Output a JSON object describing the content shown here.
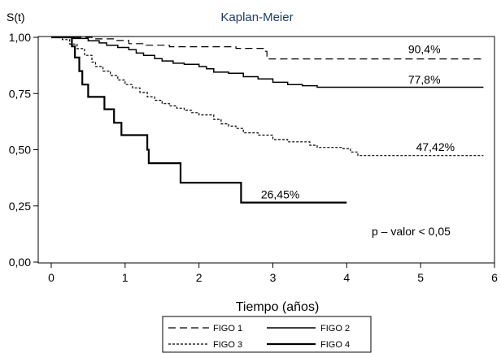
{
  "chart_data": {
    "type": "line",
    "title": "Kaplan-Meier",
    "title_color": "#1f3d6b",
    "ylabel": "S(t)",
    "xlabel": "Tiempo (años)",
    "xlim": [
      0,
      6
    ],
    "ylim": [
      0,
      1
    ],
    "xticks": [
      0,
      1,
      2,
      3,
      4,
      5,
      6
    ],
    "xtick_labels": [
      "0",
      "1",
      "2",
      "3",
      "4",
      "5",
      "6"
    ],
    "yticks": [
      0,
      0.25,
      0.5,
      0.75,
      1
    ],
    "ytick_labels": [
      "0,00",
      "0,25",
      "0,50",
      "0,75",
      "1,00"
    ],
    "grid": false,
    "legend": {
      "position": "bottom",
      "columns": 2
    },
    "annotation": "p – valor <  0,05",
    "series": [
      {
        "name": "FIGO 1",
        "style": "long-dash",
        "label": "90,4%",
        "points": [
          [
            0,
            1
          ],
          [
            0.45,
            1
          ],
          [
            0.55,
            0.993
          ],
          [
            0.85,
            0.986
          ],
          [
            1.05,
            0.972
          ],
          [
            1.25,
            0.965
          ],
          [
            1.6,
            0.958
          ],
          [
            2.5,
            0.951
          ],
          [
            2.9,
            0.938
          ],
          [
            2.92,
            0.904
          ],
          [
            5.85,
            0.904
          ]
        ]
      },
      {
        "name": "FIGO 2",
        "style": "solid",
        "label": "77,8%",
        "points": [
          [
            0,
            1
          ],
          [
            0.3,
            0.995
          ],
          [
            0.5,
            0.985
          ],
          [
            0.65,
            0.975
          ],
          [
            0.75,
            0.965
          ],
          [
            0.9,
            0.955
          ],
          [
            1.05,
            0.945
          ],
          [
            1.15,
            0.93
          ],
          [
            1.25,
            0.92
          ],
          [
            1.4,
            0.905
          ],
          [
            1.5,
            0.895
          ],
          [
            1.65,
            0.885
          ],
          [
            1.8,
            0.88
          ],
          [
            2.0,
            0.87
          ],
          [
            2.1,
            0.86
          ],
          [
            2.2,
            0.845
          ],
          [
            2.4,
            0.84
          ],
          [
            2.6,
            0.825
          ],
          [
            2.8,
            0.815
          ],
          [
            3.0,
            0.8
          ],
          [
            3.2,
            0.79
          ],
          [
            3.4,
            0.785
          ],
          [
            3.6,
            0.778
          ],
          [
            5.85,
            0.778
          ]
        ]
      },
      {
        "name": "FIGO 3",
        "style": "short-dash",
        "label": "47,42%",
        "points": [
          [
            0,
            1
          ],
          [
            0.15,
            0.99
          ],
          [
            0.25,
            0.97
          ],
          [
            0.35,
            0.95
          ],
          [
            0.45,
            0.92
          ],
          [
            0.55,
            0.89
          ],
          [
            0.6,
            0.87
          ],
          [
            0.7,
            0.85
          ],
          [
            0.8,
            0.83
          ],
          [
            0.9,
            0.81
          ],
          [
            1.0,
            0.79
          ],
          [
            1.1,
            0.775
          ],
          [
            1.2,
            0.755
          ],
          [
            1.3,
            0.735
          ],
          [
            1.4,
            0.72
          ],
          [
            1.5,
            0.705
          ],
          [
            1.6,
            0.695
          ],
          [
            1.7,
            0.685
          ],
          [
            1.8,
            0.675
          ],
          [
            1.9,
            0.665
          ],
          [
            2.0,
            0.655
          ],
          [
            2.2,
            0.635
          ],
          [
            2.3,
            0.615
          ],
          [
            2.4,
            0.605
          ],
          [
            2.5,
            0.595
          ],
          [
            2.6,
            0.575
          ],
          [
            2.8,
            0.565
          ],
          [
            3.0,
            0.545
          ],
          [
            3.2,
            0.535
          ],
          [
            3.5,
            0.52
          ],
          [
            3.6,
            0.51
          ],
          [
            3.95,
            0.505
          ],
          [
            4.05,
            0.49
          ],
          [
            4.15,
            0.474
          ],
          [
            5.85,
            0.474
          ]
        ]
      },
      {
        "name": "FIGO 4",
        "style": "thick-solid",
        "label": "26,45%",
        "points": [
          [
            0,
            1
          ],
          [
            0.28,
            1
          ],
          [
            0.28,
            0.96
          ],
          [
            0.32,
            0.91
          ],
          [
            0.38,
            0.85
          ],
          [
            0.42,
            0.79
          ],
          [
            0.5,
            0.79
          ],
          [
            0.5,
            0.735
          ],
          [
            0.72,
            0.735
          ],
          [
            0.72,
            0.68
          ],
          [
            0.85,
            0.68
          ],
          [
            0.85,
            0.62
          ],
          [
            0.95,
            0.62
          ],
          [
            0.95,
            0.565
          ],
          [
            1.3,
            0.565
          ],
          [
            1.3,
            0.5
          ],
          [
            1.32,
            0.5
          ],
          [
            1.32,
            0.44
          ],
          [
            1.75,
            0.44
          ],
          [
            1.75,
            0.353
          ],
          [
            2.57,
            0.353
          ],
          [
            2.57,
            0.265
          ],
          [
            4.0,
            0.265
          ]
        ]
      }
    ]
  }
}
